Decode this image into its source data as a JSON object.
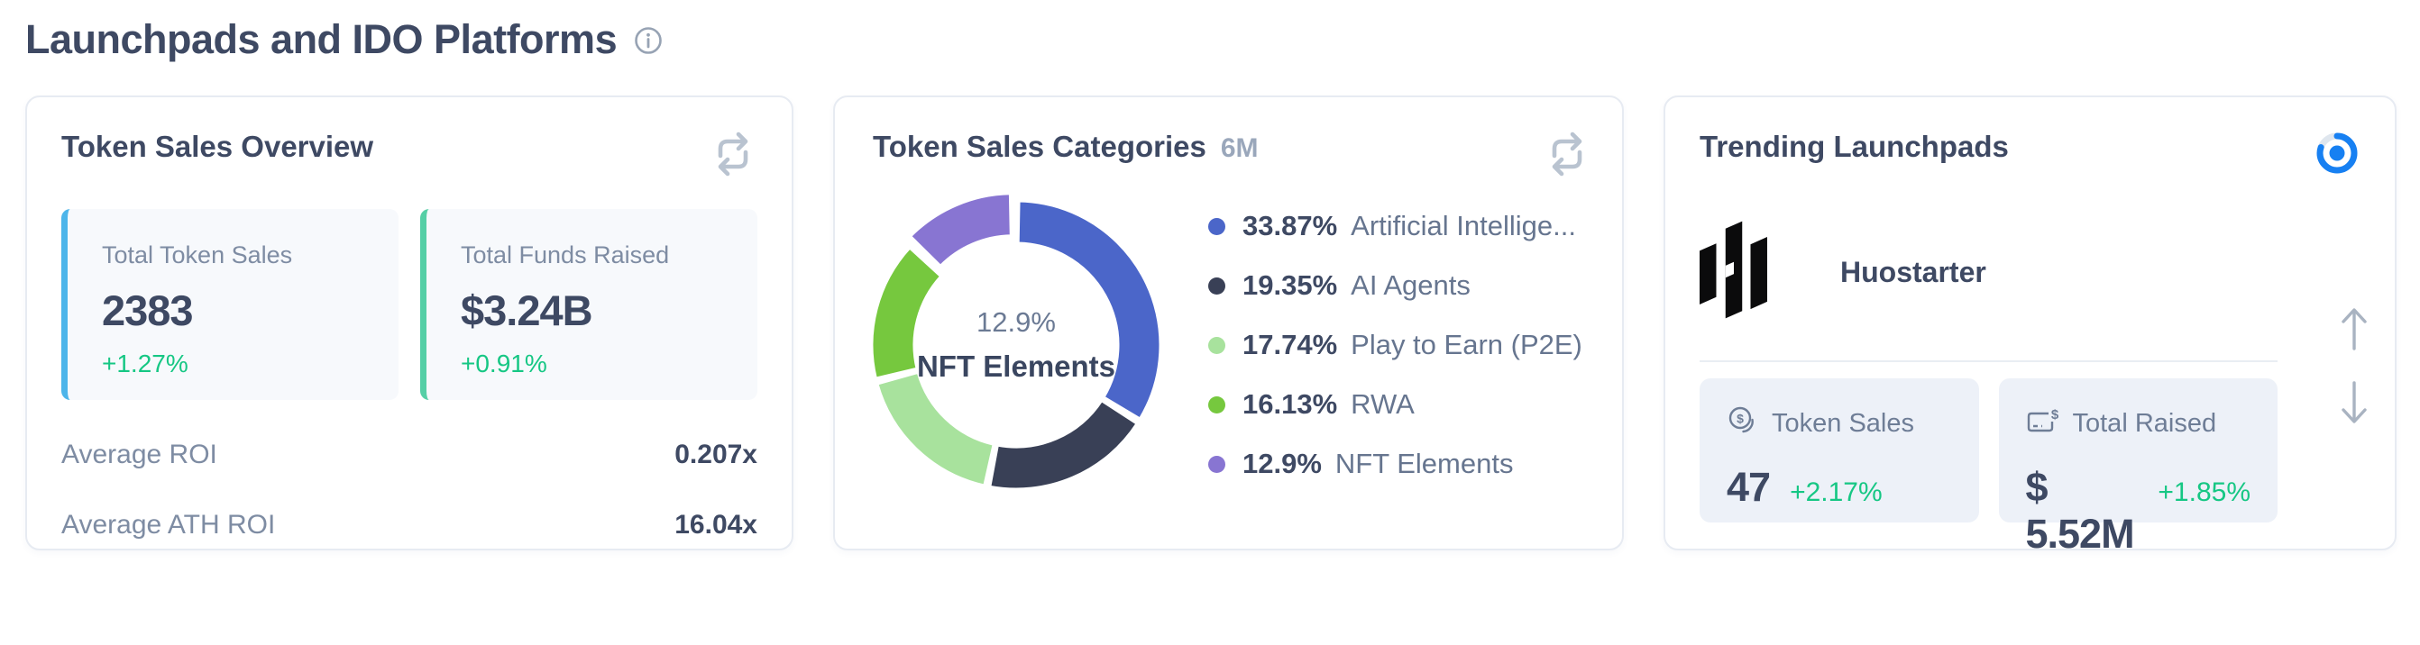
{
  "page": {
    "title": "Launchpads and IDO Platforms"
  },
  "colors": {
    "positive_green": "#16c784",
    "timer_blue": "#1780f2",
    "card_border": "#e7ebf2",
    "muted_label": "#7e8ca3",
    "heading": "#3e4963"
  },
  "cards": {
    "overview": {
      "title": "Token Sales Overview",
      "stats": [
        {
          "label": "Total Token Sales",
          "value": "2383",
          "change": "+1.27%",
          "accent_color": "#4db5ea"
        },
        {
          "label": "Total Funds Raised",
          "value": "$3.24B",
          "change": "+0.91%",
          "accent_color": "#55cfa6"
        }
      ],
      "rows": [
        {
          "label": "Average ROI",
          "value": "0.207x"
        },
        {
          "label": "Average ATH ROI",
          "value": "16.04x"
        }
      ]
    },
    "categories": {
      "title": "Token Sales Categories",
      "period": "6M"
    },
    "trending": {
      "title": "Trending Launchpads",
      "launchpad_name": "Huostarter",
      "stats": [
        {
          "label": "Token Sales",
          "value": "47",
          "change": "+2.17%",
          "icon": "coins-dollar-icon"
        },
        {
          "label": "Total Raised",
          "value": "$ 5.52M",
          "change": "+1.85%",
          "icon": "receipt-dollar-icon"
        }
      ]
    }
  },
  "chart_data": {
    "type": "pie",
    "donut": true,
    "title": "Token Sales Categories",
    "period": "6M",
    "legend_position": "right",
    "series": [
      {
        "label": "Artificial Intelligence",
        "display_label": "Artificial Intellige...",
        "value": 33.87,
        "pct_label": "33.87%",
        "color": "#4b66c9"
      },
      {
        "label": "AI Agents",
        "display_label": "AI Agents",
        "value": 19.35,
        "pct_label": "19.35%",
        "color": "#394056"
      },
      {
        "label": "Play to Earn (P2E)",
        "display_label": "Play to Earn (P2E)",
        "value": 17.74,
        "pct_label": "17.74%",
        "color": "#a8e29d"
      },
      {
        "label": "RWA",
        "display_label": "RWA",
        "value": 16.13,
        "pct_label": "16.13%",
        "color": "#76c83e"
      },
      {
        "label": "NFT Elements",
        "display_label": "NFT Elements",
        "value": 12.9,
        "pct_label": "12.9%",
        "color": "#8875d2",
        "highlighted": true
      }
    ],
    "center_label": {
      "pct": "12.9%",
      "name": "NFT Elements"
    }
  }
}
